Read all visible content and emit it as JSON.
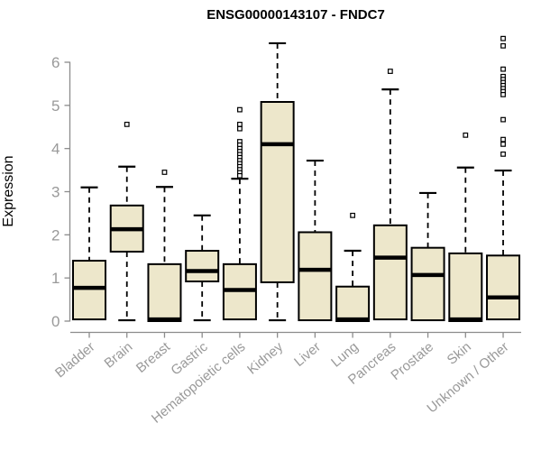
{
  "chart_data": {
    "type": "boxplot",
    "title": "ENSG00000143107 - FNDC7",
    "ylabel": "Expression",
    "xlabel": "",
    "ylim": [
      0,
      6
    ],
    "yticks": [
      0,
      1,
      2,
      3,
      4,
      5,
      6
    ],
    "grid": false,
    "legend": "none",
    "categories": [
      "Bladder",
      "Brain",
      "Breast",
      "Gastric",
      "Hematopoietic cells",
      "Kidney",
      "Liver",
      "Lung",
      "Pancreas",
      "Prostate",
      "Skin",
      "Unknown / Other"
    ],
    "series": [
      {
        "name": "Bladder",
        "whisker_low": 0.04,
        "q1": 0.04,
        "median": 0.77,
        "q3": 1.4,
        "whisker_high": 3.1,
        "outliers": []
      },
      {
        "name": "Brain",
        "whisker_low": 0.02,
        "q1": 1.61,
        "median": 2.13,
        "q3": 2.68,
        "whisker_high": 3.58,
        "outliers": [
          4.56
        ]
      },
      {
        "name": "Breast",
        "whisker_low": 0.0,
        "q1": 0.0,
        "median": 0.04,
        "q3": 1.32,
        "whisker_high": 3.11,
        "outliers": [
          3.45
        ]
      },
      {
        "name": "Gastric",
        "whisker_low": 0.02,
        "q1": 0.92,
        "median": 1.16,
        "q3": 1.63,
        "whisker_high": 2.45,
        "outliers": []
      },
      {
        "name": "Hematopoietic cells",
        "whisker_low": 0.04,
        "q1": 0.04,
        "median": 0.72,
        "q3": 1.32,
        "whisker_high": 3.3,
        "outliers": [
          4.9,
          4.56,
          4.46,
          4.16,
          4.08,
          4.0,
          3.93,
          3.86,
          3.79,
          3.72,
          3.65,
          3.58,
          3.51,
          3.44,
          3.37
        ]
      },
      {
        "name": "Kidney",
        "whisker_low": 0.02,
        "q1": 0.9,
        "median": 4.1,
        "q3": 5.08,
        "whisker_high": 6.44,
        "outliers": []
      },
      {
        "name": "Liver",
        "whisker_low": 0.02,
        "q1": 0.02,
        "median": 1.19,
        "q3": 2.06,
        "whisker_high": 3.72,
        "outliers": []
      },
      {
        "name": "Lung",
        "whisker_low": 0.0,
        "q1": 0.0,
        "median": 0.04,
        "q3": 0.8,
        "whisker_high": 1.63,
        "outliers": [
          2.45
        ]
      },
      {
        "name": "Pancreas",
        "whisker_low": 0.04,
        "q1": 0.04,
        "median": 1.47,
        "q3": 2.22,
        "whisker_high": 5.37,
        "outliers": [
          5.79
        ]
      },
      {
        "name": "Prostate",
        "whisker_low": 0.02,
        "q1": 0.02,
        "median": 1.07,
        "q3": 1.7,
        "whisker_high": 2.97,
        "outliers": []
      },
      {
        "name": "Skin",
        "whisker_low": 0.0,
        "q1": 0.0,
        "median": 0.04,
        "q3": 1.57,
        "whisker_high": 3.56,
        "outliers": [
          4.31
        ]
      },
      {
        "name": "Unknown / Other",
        "whisker_low": 0.04,
        "q1": 0.04,
        "median": 0.55,
        "q3": 1.52,
        "whisker_high": 3.49,
        "outliers": [
          6.55,
          6.38,
          5.84,
          5.67,
          5.6,
          5.53,
          5.46,
          5.39,
          5.32,
          5.25,
          4.67,
          4.21,
          4.1,
          3.87
        ]
      }
    ],
    "colors": {
      "box_fill": "#EDE7CB",
      "box_stroke": "#000000",
      "median": "#000000",
      "whisker": "#000000",
      "outlier_stroke": "#000000",
      "outlier_fill": "#FFFFFF",
      "axis_line": "#8C8C8C",
      "tick_label": "#999999",
      "title": "#000000",
      "background": "#FFFFFF"
    }
  }
}
